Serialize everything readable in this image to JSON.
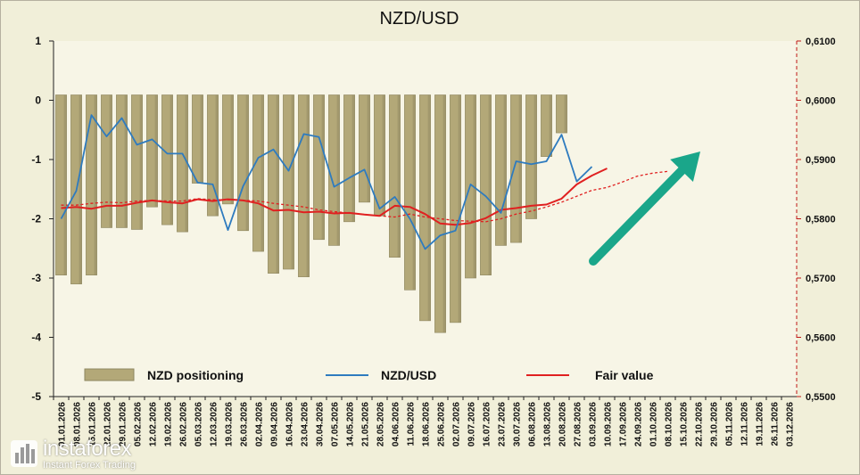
{
  "chart_data": {
    "type": "bar+line",
    "title": "NZD/USD",
    "x_labels": [
      "01.01.2026",
      "08.01.2026",
      "15.01.2026",
      "22.01.2026",
      "29.01.2026",
      "05.02.2026",
      "12.02.2026",
      "19.02.2026",
      "26.02.2026",
      "05.03.2026",
      "12.03.2026",
      "19.03.2026",
      "26.03.2026",
      "02.04.2026",
      "09.04.2026",
      "16.04.2026",
      "23.04.2026",
      "30.04.2026",
      "07.05.2026",
      "14.05.2026",
      "21.05.2026",
      "28.05.2026",
      "04.06.2026",
      "11.06.2026",
      "18.06.2026",
      "25.06.2026",
      "02.07.2026",
      "09.07.2026",
      "16.07.2026",
      "23.07.2026",
      "30.07.2026",
      "06.08.2026",
      "13.08.2026",
      "20.08.2026",
      "27.08.2026",
      "03.09.2026",
      "10.09.2026",
      "17.09.2026",
      "24.09.2026",
      "01.10.2026",
      "08.10.2026",
      "15.10.2026",
      "22.10.2026",
      "29.10.2026",
      "05.11.2026",
      "12.11.2026",
      "19.11.2026",
      "26.11.2026",
      "03.12.2026"
    ],
    "left_axis": {
      "min": -5,
      "max": 1,
      "ticks": [
        "1",
        "0",
        "-1",
        "-2",
        "-3",
        "-4",
        "-5"
      ]
    },
    "right_axis": {
      "min": 0.55,
      "max": 0.61,
      "ticks": [
        "0,6100",
        "0,6000",
        "0,5900",
        "0,5800",
        "0,5700",
        "0,5600",
        "0,5500"
      ]
    },
    "series": [
      {
        "name": "NZD positioning",
        "type": "bar",
        "axis": "left",
        "color": "#b3a878",
        "values": [
          -2.95,
          -3.1,
          -2.95,
          -2.15,
          -2.15,
          -2.18,
          -1.8,
          -2.1,
          -2.22,
          -1.4,
          -1.95,
          -1.75,
          -2.2,
          -2.55,
          -2.92,
          -2.85,
          -2.98,
          -2.35,
          -2.45,
          -2.05,
          -1.72,
          -1.95,
          -2.65,
          -3.2,
          -3.72,
          -3.92,
          -3.75,
          -3.0,
          -2.95,
          -2.45,
          -2.4,
          -2.0,
          -0.95,
          -0.55
        ]
      },
      {
        "name": "NZD/USD",
        "type": "line",
        "axis": "right",
        "color": "#2e7bbf",
        "values": [
          0.58,
          0.5847,
          0.5975,
          0.5939,
          0.597,
          0.5925,
          0.5934,
          0.591,
          0.591,
          0.5861,
          0.5858,
          0.5781,
          0.5855,
          0.5903,
          0.5917,
          0.5881,
          0.5943,
          0.5938,
          0.5854,
          0.5869,
          0.5883,
          0.5817,
          0.5837,
          0.58,
          0.5749,
          0.5772,
          0.578,
          0.5858,
          0.5838,
          0.581,
          0.5897,
          0.5892,
          0.5897,
          0.5942,
          0.5863,
          0.5888
        ]
      },
      {
        "name": "Fair value",
        "type": "line",
        "axis": "right",
        "color": "#e02020",
        "values": [
          0.5818,
          0.582,
          0.5817,
          0.5822,
          0.5822,
          0.5827,
          0.5831,
          0.5828,
          0.5826,
          0.5833,
          0.583,
          0.5833,
          0.5831,
          0.5826,
          0.5814,
          0.5815,
          0.5811,
          0.5812,
          0.5809,
          0.581,
          0.5807,
          0.5805,
          0.5822,
          0.582,
          0.5808,
          0.5792,
          0.579,
          0.5793,
          0.5801,
          0.5815,
          0.5818,
          0.5822,
          0.5824,
          0.5834,
          0.5858,
          0.5873,
          0.5885
        ]
      },
      {
        "name": "Fair value forecast",
        "type": "line",
        "axis": "right",
        "color": "#e02020",
        "dashed": true,
        "values": [
          0.5823,
          0.5823,
          0.5826,
          0.5828,
          0.5827,
          0.583,
          0.5831,
          0.583,
          0.583,
          0.5834,
          0.5832,
          0.5832,
          0.5831,
          0.583,
          0.5826,
          0.5823,
          0.582,
          0.5815,
          0.5812,
          0.581,
          0.5807,
          0.5805,
          0.5803,
          0.5808,
          0.5803,
          0.58,
          0.5797,
          0.5796,
          0.5795,
          0.58,
          0.5808,
          0.5813,
          0.582,
          0.5828,
          0.5838,
          0.5848,
          0.5853,
          0.5862,
          0.5872,
          0.5877,
          0.588
        ]
      }
    ],
    "legend": [
      {
        "label": "NZD positioning",
        "kind": "bar",
        "color": "#b3a878"
      },
      {
        "label": "NZD/USD",
        "kind": "line",
        "color": "#2e7bbf"
      },
      {
        "label": "Fair value",
        "kind": "line",
        "color": "#e02020"
      }
    ],
    "arrow": {
      "color": "#1aa68a",
      "direction": "up-right"
    }
  },
  "watermark": {
    "brand": "instaforex",
    "tagline": "Instant Forex Trading"
  }
}
